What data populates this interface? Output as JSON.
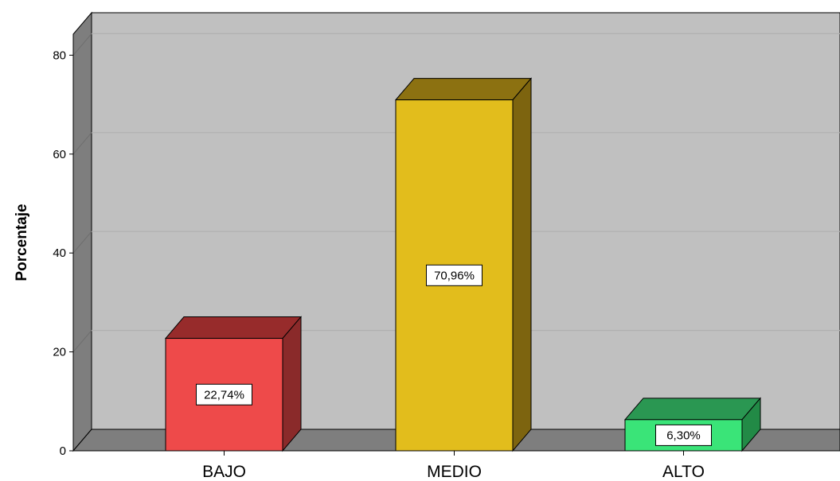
{
  "chart_data": {
    "type": "bar",
    "categories": [
      "BAJO",
      "MEDIO",
      "ALTO"
    ],
    "values": [
      22.74,
      70.96,
      6.3
    ],
    "data_labels": [
      "22,74%",
      "70,96%",
      "6,30%"
    ],
    "ylabel": "Porcentaje",
    "xlabel": "",
    "ylim": [
      0,
      85
    ],
    "yticks": [
      0,
      20,
      40,
      60,
      80
    ],
    "grid": true,
    "three_d": true,
    "background_color": "#c0c0c0",
    "colors": {
      "BAJO": {
        "front": "#ee4a4a",
        "top": "#972b2b",
        "side": "#8a2a2a"
      },
      "MEDIO": {
        "front": "#e2bd1c",
        "top": "#8c7111",
        "side": "#7d640f"
      },
      "ALTO": {
        "front": "#3ae478",
        "top": "#2a9752",
        "side": "#228a46"
      }
    }
  }
}
